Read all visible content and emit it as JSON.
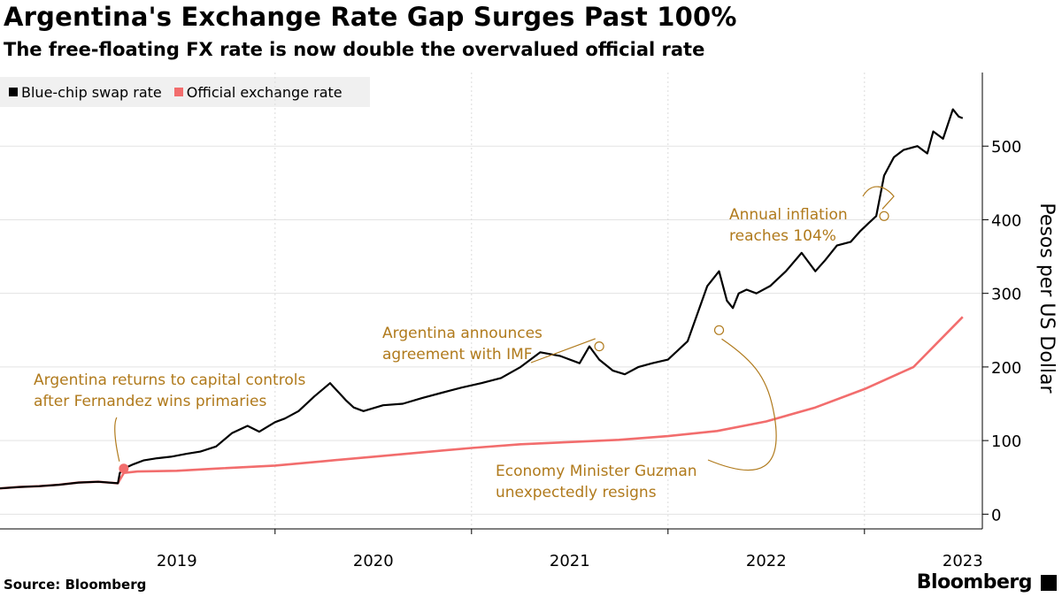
{
  "header": {
    "title": "Argentina's Exchange Rate Gap Surges Past 100%",
    "subtitle": "The free-floating FX rate is now double the overvalued official rate"
  },
  "legend": {
    "items": [
      {
        "label": "Blue-chip swap rate",
        "color": "#000000"
      },
      {
        "label": "Official exchange rate",
        "color": "#f26d6d"
      }
    ]
  },
  "footer": {
    "source": "Source: Bloomberg",
    "brand": "Bloomberg"
  },
  "chart_data": {
    "type": "line",
    "title": "Argentina's Exchange Rate Gap Surges Past 100%",
    "subtitle": "The free-floating FX rate is now double the overvalued official rate",
    "ylabel": "Pesos per US Dollar",
    "xlabel": "",
    "ylim": [
      -20,
      600
    ],
    "xlim": [
      2018.6,
      2023.6
    ],
    "yticks": [
      0,
      100,
      200,
      300,
      400,
      500
    ],
    "xticks": [
      {
        "label": "2019",
        "value": 2019.5
      },
      {
        "label": "2020",
        "value": 2020.5
      },
      {
        "label": "2021",
        "value": 2021.5
      },
      {
        "label": "2022",
        "value": 2022.5
      },
      {
        "label": "2023",
        "value": 2023.5
      }
    ],
    "year_boundaries": [
      2020.0,
      2021.0,
      2022.0,
      2023.0
    ],
    "legend_position": "top-left",
    "series": [
      {
        "name": "Blue-chip swap rate",
        "color": "#000000",
        "x": [
          2018.6,
          2018.7,
          2018.8,
          2018.9,
          2019.0,
          2019.1,
          2019.2,
          2019.21,
          2019.23,
          2019.28,
          2019.33,
          2019.4,
          2019.47,
          2019.55,
          2019.62,
          2019.7,
          2019.78,
          2019.86,
          2019.92,
          2020.0,
          2020.05,
          2020.12,
          2020.2,
          2020.28,
          2020.36,
          2020.4,
          2020.45,
          2020.55,
          2020.65,
          2020.75,
          2020.85,
          2020.95,
          2021.05,
          2021.15,
          2021.25,
          2021.35,
          2021.45,
          2021.55,
          2021.6,
          2021.65,
          2021.72,
          2021.78,
          2021.85,
          2021.92,
          2022.0,
          2022.1,
          2022.2,
          2022.26,
          2022.3,
          2022.33,
          2022.36,
          2022.4,
          2022.45,
          2022.52,
          2022.6,
          2022.68,
          2022.75,
          2022.8,
          2022.86,
          2022.93,
          2022.98,
          2023.02,
          2023.06,
          2023.1,
          2023.15,
          2023.2,
          2023.27,
          2023.32,
          2023.35,
          2023.4,
          2023.45,
          2023.48,
          2023.5
        ],
        "values": [
          35,
          37,
          38,
          40,
          43,
          44,
          42,
          56,
          62,
          68,
          73,
          76,
          78,
          82,
          85,
          92,
          110,
          120,
          112,
          125,
          130,
          140,
          160,
          178,
          155,
          145,
          140,
          148,
          150,
          158,
          165,
          172,
          178,
          185,
          200,
          220,
          215,
          205,
          228,
          210,
          195,
          190,
          200,
          205,
          210,
          235,
          310,
          330,
          290,
          280,
          300,
          305,
          300,
          310,
          330,
          355,
          330,
          345,
          365,
          370,
          385,
          395,
          405,
          460,
          485,
          495,
          500,
          490,
          520,
          510,
          550,
          540,
          538
        ]
      },
      {
        "name": "Official exchange rate",
        "color": "#f26d6d",
        "x": [
          2018.6,
          2018.7,
          2018.8,
          2018.9,
          2019.0,
          2019.1,
          2019.2,
          2019.23,
          2019.3,
          2019.5,
          2019.7,
          2020.0,
          2020.25,
          2020.5,
          2020.75,
          2021.0,
          2021.25,
          2021.5,
          2021.75,
          2022.0,
          2022.25,
          2022.5,
          2022.75,
          2023.0,
          2023.25,
          2023.5
        ],
        "values": [
          35,
          37,
          38,
          40,
          43,
          44,
          42,
          56,
          58,
          59,
          62,
          66,
          72,
          78,
          84,
          90,
          95,
          98,
          101,
          106,
          113,
          126,
          145,
          170,
          200,
          268
        ]
      }
    ],
    "annotations": [
      {
        "label": "Argentina returns to capital controls after Fernandez wins primaries",
        "lines": [
          "Argentina returns to capital controls",
          "after Fernandez wins primaries"
        ],
        "x": 2019.23,
        "y": 62
      },
      {
        "label": "Argentina announces agreement with IMF",
        "lines": [
          "Argentina announces",
          "agreement with IMF"
        ],
        "x": 2021.65,
        "y": 228
      },
      {
        "label": "Economy Minister Guzman unexpectedly resigns",
        "lines": [
          "Economy Minister Guzman",
          "unexpectedly resigns"
        ],
        "x": 2022.26,
        "y": 250
      },
      {
        "label": "Annual inflation reaches 104%",
        "lines": [
          "Annual inflation",
          "reaches 104%"
        ],
        "x": 2023.1,
        "y": 405
      }
    ]
  }
}
